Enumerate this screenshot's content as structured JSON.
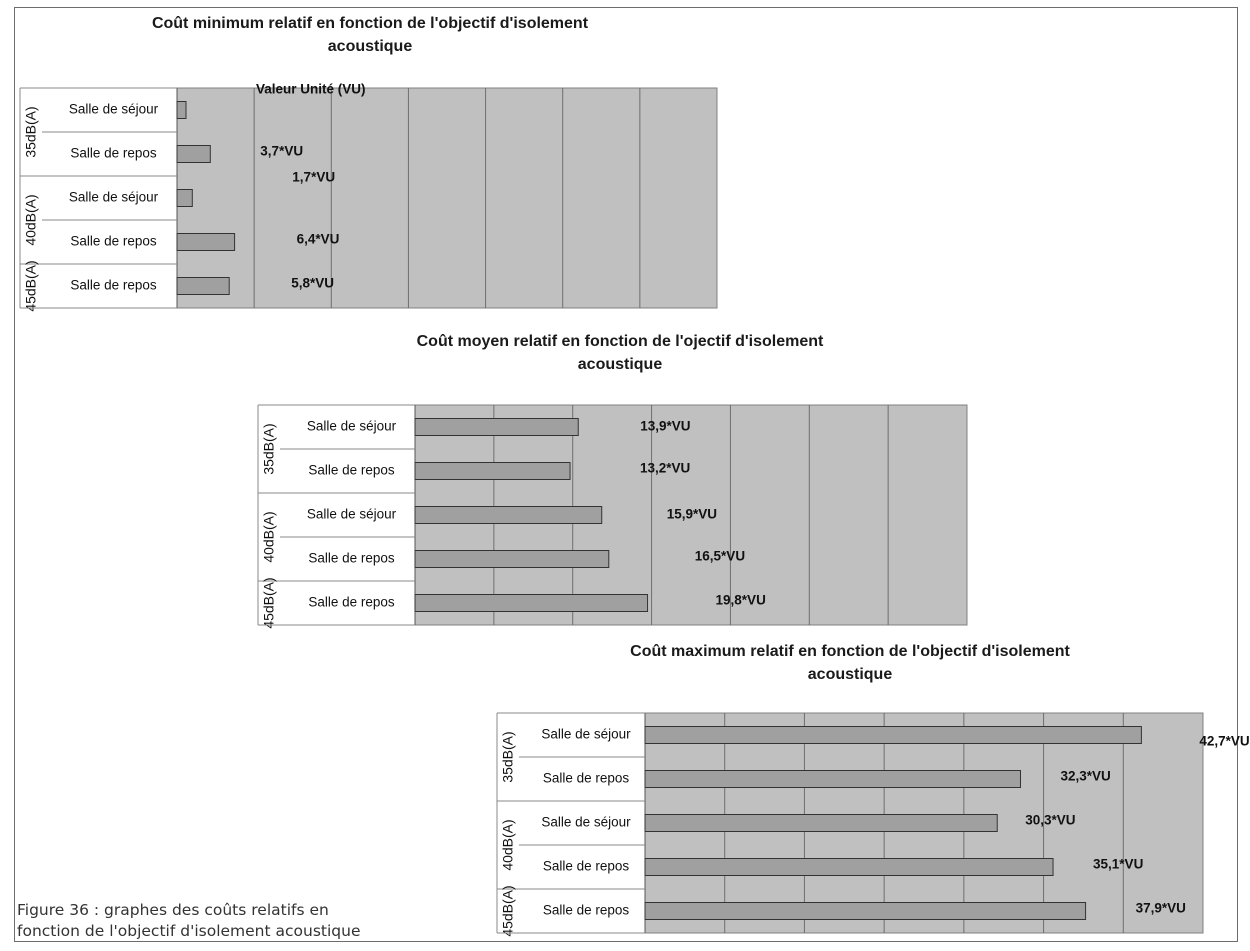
{
  "chart_data": [
    {
      "type": "bar",
      "orientation": "horizontal",
      "title": "Coût minimum relatif en fonction de l'objectif d'isolement\nacoustique",
      "groups": [
        {
          "label": "35dB(A)",
          "rows": [
            {
              "label": "Salle de séjour",
              "value": 1.0,
              "data_label": "Valeur Unité (VU)"
            },
            {
              "label": "Salle de repos",
              "value": 3.7,
              "data_label": "3,7*VU"
            }
          ]
        },
        {
          "label": "40dB(A)",
          "rows": [
            {
              "label": "Salle de séjour",
              "value": 1.7,
              "data_label": "1,7*VU"
            },
            {
              "label": "Salle de repos",
              "value": 6.4,
              "data_label": "6,4*VU"
            }
          ]
        },
        {
          "label": "45dB(A)",
          "rows": [
            {
              "label": "Salle de repos",
              "value": 5.8,
              "data_label": "5,8*VU"
            }
          ]
        }
      ],
      "xlim": [
        0,
        60
      ],
      "grid": true,
      "bar_color": "#a0a0a0",
      "plot_bg": "#c0c0c0"
    },
    {
      "type": "bar",
      "orientation": "horizontal",
      "title": "Coût moyen relatif en fonction de l'ojectif d'isolement\nacoustique",
      "groups": [
        {
          "label": "35dB(A)",
          "rows": [
            {
              "label": "Salle de séjour",
              "value": 13.9,
              "data_label": "13,9*VU"
            },
            {
              "label": "Salle de repos",
              "value": 13.2,
              "data_label": "13,2*VU"
            }
          ]
        },
        {
          "label": "40dB(A)",
          "rows": [
            {
              "label": "Salle de séjour",
              "value": 15.9,
              "data_label": "15,9*VU"
            },
            {
              "label": "Salle de repos",
              "value": 16.5,
              "data_label": "16,5*VU"
            }
          ]
        },
        {
          "label": "45dB(A)",
          "rows": [
            {
              "label": "Salle de repos",
              "value": 19.8,
              "data_label": "19,8*VU"
            }
          ]
        }
      ],
      "xlim": [
        0,
        47
      ],
      "grid": true,
      "bar_color": "#a0a0a0",
      "plot_bg": "#c0c0c0"
    },
    {
      "type": "bar",
      "orientation": "horizontal",
      "title": "Coût maximum relatif en fonction de l'objectif d'isolement\nacoustique",
      "groups": [
        {
          "label": "35dB(A)",
          "rows": [
            {
              "label": "Salle de séjour",
              "value": 42.7,
              "data_label": "42,7*VU"
            },
            {
              "label": "Salle de repos",
              "value": 32.3,
              "data_label": "32,3*VU"
            }
          ]
        },
        {
          "label": "40dB(A)",
          "rows": [
            {
              "label": "Salle de séjour",
              "value": 30.3,
              "data_label": "30,3*VU"
            },
            {
              "label": "Salle de repos",
              "value": 35.1,
              "data_label": "35,1*VU"
            }
          ]
        },
        {
          "label": "45dB(A)",
          "rows": [
            {
              "label": "Salle de repos",
              "value": 37.9,
              "data_label": "37,9*VU"
            }
          ]
        }
      ],
      "xlim": [
        0,
        48
      ],
      "grid": true,
      "bar_color": "#a0a0a0",
      "plot_bg": "#c0c0c0"
    }
  ],
  "caption": "Figure 36 : graphes des coûts relatifs en\nfonction de l'objectif d'isolement acoustique"
}
